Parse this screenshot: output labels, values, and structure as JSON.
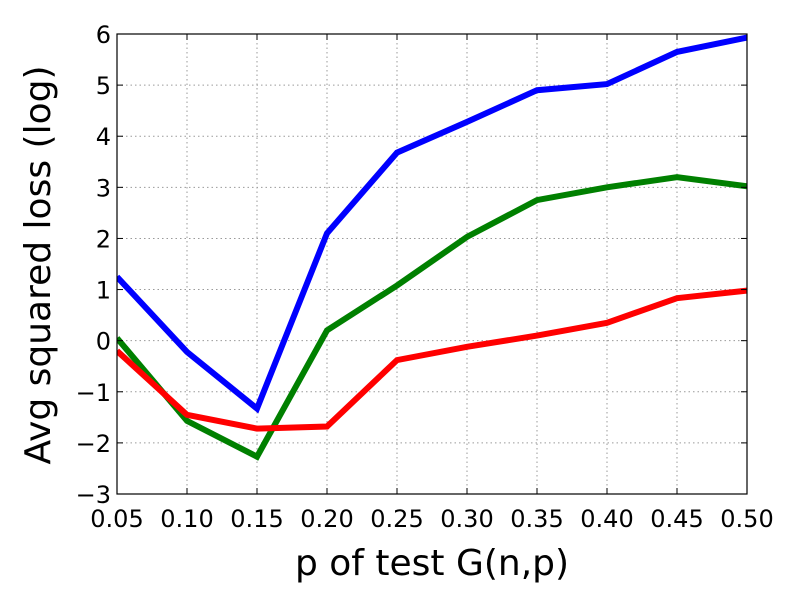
{
  "chart_data": {
    "type": "line",
    "xlabel": "p of test G(n,p)",
    "ylabel": "Avg squared loss (log)",
    "x": [
      0.05,
      0.1,
      0.15,
      0.2,
      0.25,
      0.3,
      0.35,
      0.4,
      0.45,
      0.5
    ],
    "xlim": [
      0.05,
      0.5
    ],
    "ylim": [
      -3,
      6
    ],
    "x_ticks": [
      "0.05",
      "0.10",
      "0.15",
      "0.20",
      "0.25",
      "0.30",
      "0.35",
      "0.40",
      "0.45",
      "0.50"
    ],
    "y_ticks": [
      "−3",
      "−2",
      "−1",
      "0",
      "1",
      "2",
      "3",
      "4",
      "5",
      "6"
    ],
    "grid": true,
    "series": [
      {
        "color": "#0000ff",
        "values": [
          1.25,
          -0.22,
          -1.33,
          2.1,
          3.68,
          4.28,
          4.9,
          5.02,
          5.65,
          5.93
        ]
      },
      {
        "color": "#008000",
        "values": [
          0.05,
          -1.57,
          -2.27,
          0.2,
          1.08,
          2.03,
          2.75,
          3.0,
          3.2,
          3.02
        ]
      },
      {
        "color": "#ff0000",
        "values": [
          -0.2,
          -1.45,
          -1.72,
          -1.68,
          -0.38,
          -0.12,
          0.1,
          0.35,
          0.83,
          0.98
        ]
      }
    ]
  }
}
